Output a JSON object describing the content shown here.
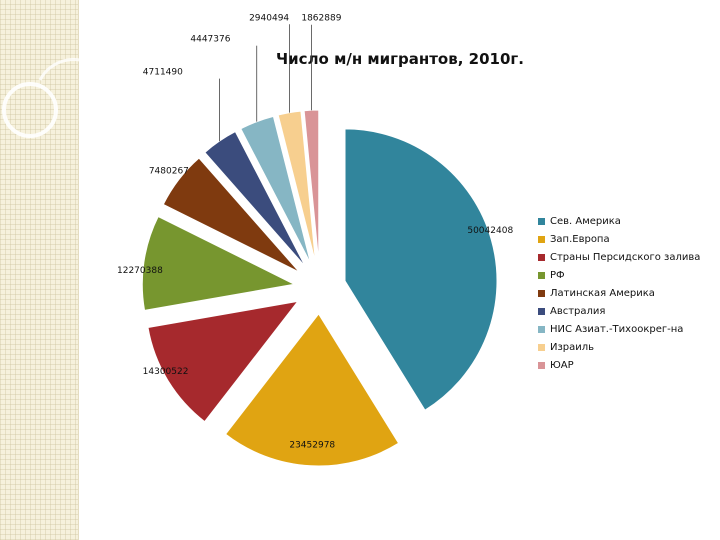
{
  "chart_data": {
    "type": "pie",
    "title": "Число м/н мигрантов, 2010г.",
    "exploded": true,
    "legend_position": "right",
    "categories": [
      "Сев. Америка",
      "Зап.Европа",
      "Страны Персидского залива",
      "РФ",
      "Латинская Америка",
      "Австралия",
      "НИС Азиат.-Тихоокрег-на",
      "Израиль",
      "ЮАР"
    ],
    "values": [
      50042408,
      23452978,
      14300522,
      12270388,
      7480267,
      4711490,
      4447376,
      2940494,
      1862889
    ],
    "labels": [
      "50042408",
      "23452978",
      "14300522",
      "12270388",
      "7480267",
      "4711490",
      "4447376",
      "2940494",
      "1862889"
    ],
    "colors": [
      "#31859c",
      "#e0a412",
      "#a6292d",
      "#77962f",
      "#7f3a0f",
      "#3b4c7d",
      "#86b6c4",
      "#f7cf8f",
      "#d99497"
    ]
  }
}
